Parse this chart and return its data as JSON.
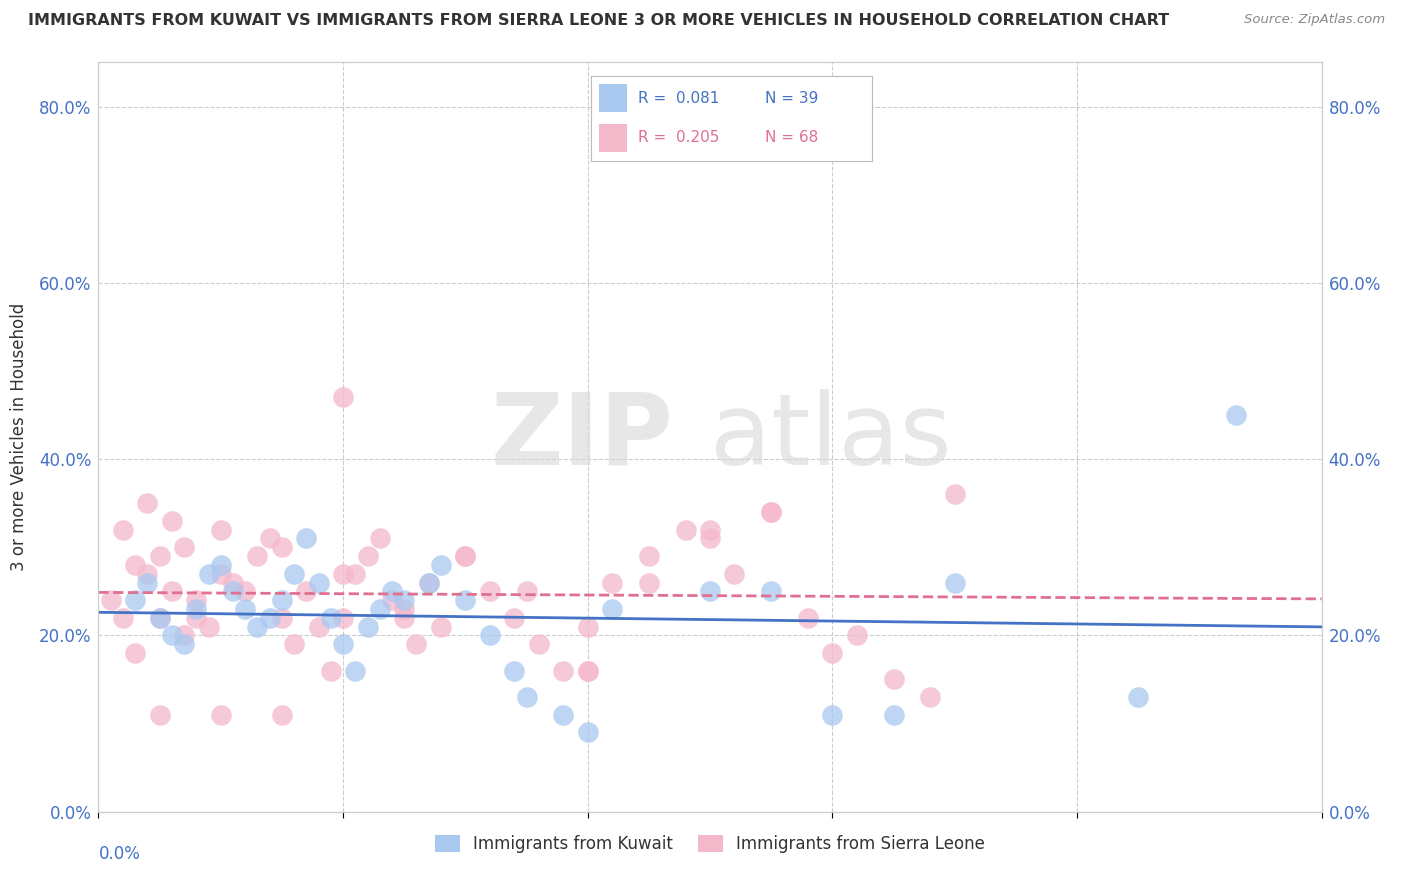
{
  "title": "IMMIGRANTS FROM KUWAIT VS IMMIGRANTS FROM SIERRA LEONE 3 OR MORE VEHICLES IN HOUSEHOLD CORRELATION CHART",
  "source": "Source: ZipAtlas.com",
  "ylabel": "3 or more Vehicles in Household",
  "ytick_labels": [
    "0.0%",
    "20.0%",
    "40.0%",
    "60.0%",
    "80.0%"
  ],
  "ytick_values": [
    0.0,
    0.2,
    0.4,
    0.6,
    0.8
  ],
  "xlim": [
    0.0,
    0.1
  ],
  "ylim": [
    0.0,
    0.85
  ],
  "kuwait_color": "#a8c8f0",
  "kuwait_line_color": "#4472c4",
  "sierra_leone_color": "#f4b8cb",
  "sierra_leone_line_color": "#e07090",
  "watermark_zip": "ZIP",
  "watermark_atlas": "atlas",
  "bg_color": "#ffffff",
  "grid_color": "#cccccc",
  "kuwait_scatter_x": [
    0.003,
    0.004,
    0.005,
    0.006,
    0.007,
    0.008,
    0.009,
    0.01,
    0.011,
    0.012,
    0.013,
    0.014,
    0.015,
    0.016,
    0.017,
    0.018,
    0.019,
    0.02,
    0.021,
    0.022,
    0.023,
    0.024,
    0.025,
    0.027,
    0.028,
    0.03,
    0.032,
    0.034,
    0.035,
    0.038,
    0.04,
    0.042,
    0.05,
    0.055,
    0.06,
    0.065,
    0.07,
    0.085,
    0.093
  ],
  "kuwait_scatter_y": [
    0.24,
    0.26,
    0.22,
    0.2,
    0.19,
    0.23,
    0.27,
    0.28,
    0.25,
    0.23,
    0.21,
    0.22,
    0.24,
    0.27,
    0.31,
    0.26,
    0.22,
    0.19,
    0.16,
    0.21,
    0.23,
    0.25,
    0.24,
    0.26,
    0.28,
    0.24,
    0.2,
    0.16,
    0.13,
    0.11,
    0.09,
    0.23,
    0.25,
    0.25,
    0.11,
    0.11,
    0.26,
    0.13,
    0.45
  ],
  "sierra_leone_scatter_x": [
    0.001,
    0.002,
    0.002,
    0.003,
    0.003,
    0.004,
    0.004,
    0.005,
    0.005,
    0.006,
    0.006,
    0.007,
    0.007,
    0.008,
    0.008,
    0.009,
    0.01,
    0.011,
    0.012,
    0.013,
    0.014,
    0.015,
    0.016,
    0.017,
    0.018,
    0.019,
    0.02,
    0.02,
    0.021,
    0.022,
    0.023,
    0.024,
    0.025,
    0.026,
    0.027,
    0.028,
    0.03,
    0.032,
    0.034,
    0.036,
    0.038,
    0.04,
    0.04,
    0.042,
    0.045,
    0.048,
    0.05,
    0.052,
    0.055,
    0.058,
    0.06,
    0.062,
    0.065,
    0.068,
    0.01,
    0.015,
    0.02,
    0.025,
    0.03,
    0.035,
    0.04,
    0.045,
    0.05,
    0.055,
    0.005,
    0.01,
    0.015,
    0.07
  ],
  "sierra_leone_scatter_y": [
    0.24,
    0.22,
    0.32,
    0.18,
    0.28,
    0.27,
    0.35,
    0.29,
    0.22,
    0.25,
    0.33,
    0.3,
    0.2,
    0.24,
    0.22,
    0.21,
    0.27,
    0.26,
    0.25,
    0.29,
    0.31,
    0.22,
    0.19,
    0.25,
    0.21,
    0.16,
    0.22,
    0.47,
    0.27,
    0.29,
    0.31,
    0.24,
    0.22,
    0.19,
    0.26,
    0.21,
    0.29,
    0.25,
    0.22,
    0.19,
    0.16,
    0.21,
    0.16,
    0.26,
    0.29,
    0.32,
    0.31,
    0.27,
    0.34,
    0.22,
    0.18,
    0.2,
    0.15,
    0.13,
    0.32,
    0.3,
    0.27,
    0.23,
    0.29,
    0.25,
    0.16,
    0.26,
    0.32,
    0.34,
    0.11,
    0.11,
    0.11,
    0.36
  ]
}
